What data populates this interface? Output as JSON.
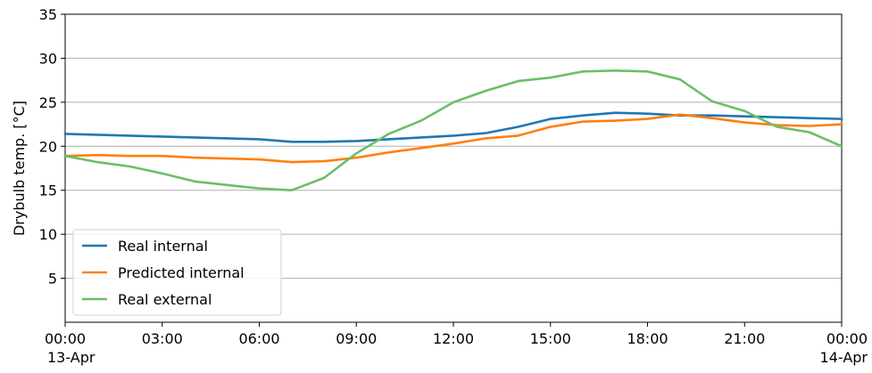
{
  "chart_data": {
    "type": "line",
    "title": "",
    "xlabel": "",
    "ylabel": "Drybulb temp. [°C]",
    "ylim": [
      0,
      35
    ],
    "xlim": [
      0,
      24
    ],
    "grid": "horizontal",
    "legend_position": "lower-left",
    "y_ticks": [
      5,
      10,
      15,
      20,
      25,
      30,
      35
    ],
    "x_ticks": [
      {
        "x": 0,
        "label": "00:00",
        "sublabel": "13-Apr"
      },
      {
        "x": 3,
        "label": "03:00",
        "sublabel": ""
      },
      {
        "x": 6,
        "label": "06:00",
        "sublabel": ""
      },
      {
        "x": 9,
        "label": "09:00",
        "sublabel": ""
      },
      {
        "x": 12,
        "label": "12:00",
        "sublabel": ""
      },
      {
        "x": 15,
        "label": "15:00",
        "sublabel": ""
      },
      {
        "x": 18,
        "label": "18:00",
        "sublabel": ""
      },
      {
        "x": 21,
        "label": "21:00",
        "sublabel": ""
      },
      {
        "x": 24,
        "label": "00:00",
        "sublabel": "14-Apr"
      }
    ],
    "x_hours": [
      0,
      1,
      2,
      3,
      4,
      5,
      6,
      7,
      8,
      9,
      10,
      11,
      12,
      13,
      14,
      15,
      16,
      17,
      18,
      19,
      20,
      21,
      22,
      23,
      24
    ],
    "series": [
      {
        "name": "Real internal",
        "color": "#1f77b4",
        "values": [
          21.4,
          21.3,
          21.2,
          21.1,
          21.0,
          20.9,
          20.8,
          20.5,
          20.5,
          20.6,
          20.8,
          21.0,
          21.2,
          21.5,
          22.2,
          23.1,
          23.5,
          23.8,
          23.7,
          23.5,
          23.5,
          23.4,
          23.3,
          23.2,
          23.1
        ]
      },
      {
        "name": "Predicted internal",
        "color": "#ff7f0e",
        "values": [
          18.9,
          19.0,
          18.9,
          18.9,
          18.7,
          18.6,
          18.5,
          18.2,
          18.3,
          18.7,
          19.3,
          19.8,
          20.3,
          20.9,
          21.2,
          22.2,
          22.8,
          22.9,
          23.1,
          23.6,
          23.2,
          22.7,
          22.4,
          22.3,
          22.5
        ]
      },
      {
        "name": "Real external",
        "color": "#6abf69",
        "values": [
          18.9,
          18.2,
          17.7,
          16.9,
          16.0,
          15.6,
          15.2,
          15.0,
          16.4,
          19.2,
          21.4,
          22.9,
          25.0,
          26.3,
          27.4,
          27.8,
          28.5,
          28.6,
          28.5,
          27.6,
          25.1,
          24.0,
          22.2,
          21.6,
          20.0
        ]
      }
    ]
  }
}
